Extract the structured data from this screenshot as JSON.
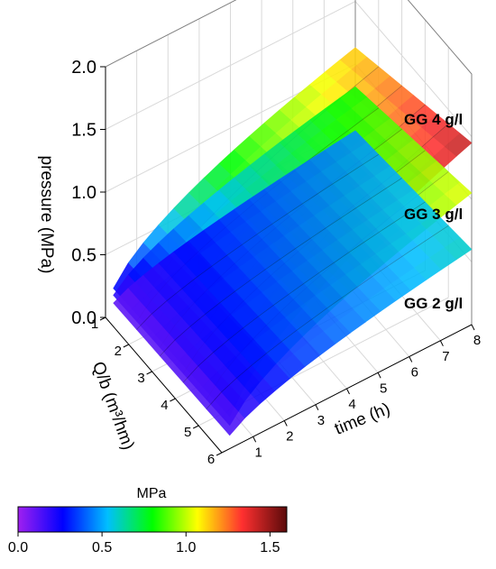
{
  "chart_data": {
    "type": "surface3d",
    "z_axis": {
      "label": "pressure (MPa)",
      "ticks": [
        "0.0",
        "0.5",
        "1.0",
        "1.5",
        "2.0"
      ],
      "range": [
        0,
        2.0
      ]
    },
    "q_axis": {
      "label": "Q/b (m³/hm)",
      "ticks": [
        "1",
        "2",
        "3",
        "4",
        "5",
        "6"
      ],
      "range": [
        1,
        6
      ]
    },
    "time_axis": {
      "label": "time (h)",
      "ticks": [
        "1",
        "2",
        "3",
        "4",
        "5",
        "6",
        "7",
        "8"
      ],
      "range": [
        0,
        8
      ]
    },
    "series": [
      {
        "name": "GG 4 g/l",
        "max_pressure": 1.45
      },
      {
        "name": "GG 3 g/l",
        "max_pressure": 1.05
      },
      {
        "name": "GG 2 g/l",
        "max_pressure": 0.6
      }
    ],
    "colorbar": {
      "title": "MPa",
      "ticks": [
        "0.0",
        "0.5",
        "1.0",
        "1.5"
      ],
      "range": [
        0,
        1.6
      ],
      "stops": [
        "#a020f0",
        "#0000ff",
        "#00bfff",
        "#00ff00",
        "#ffff00",
        "#ff3030",
        "#5a0a0a"
      ]
    },
    "grid": true
  }
}
